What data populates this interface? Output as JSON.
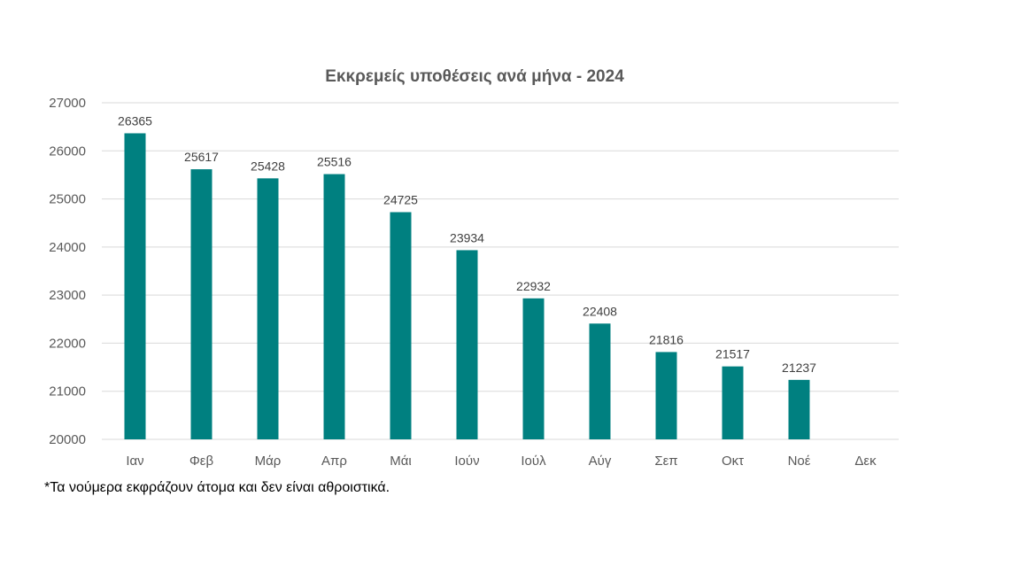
{
  "chart_data": {
    "type": "bar",
    "title": "Εκκρεμείς υποθέσεις ανά μήνα - 2024",
    "xlabel": "",
    "ylabel": "",
    "categories": [
      "Ιαν",
      "Φεβ",
      "Μάρ",
      "Απρ",
      "Μάι",
      "Ιούν",
      "Ιούλ",
      "Αύγ",
      "Σεπ",
      "Οκτ",
      "Νοέ",
      "Δεκ"
    ],
    "values": [
      26365,
      25617,
      25428,
      25516,
      24725,
      23934,
      22932,
      22408,
      21816,
      21517,
      21237,
      null
    ],
    "ylim": [
      20000,
      27000
    ],
    "yticks": [
      "20000",
      "21000",
      "22000",
      "23000",
      "24000",
      "25000",
      "26000",
      "27000"
    ],
    "grid": true,
    "legend": "none",
    "bar_color": "#008080"
  },
  "footnote": "*Τα νούμερα εκφράζουν άτομα και δεν είναι αθροιστικά."
}
